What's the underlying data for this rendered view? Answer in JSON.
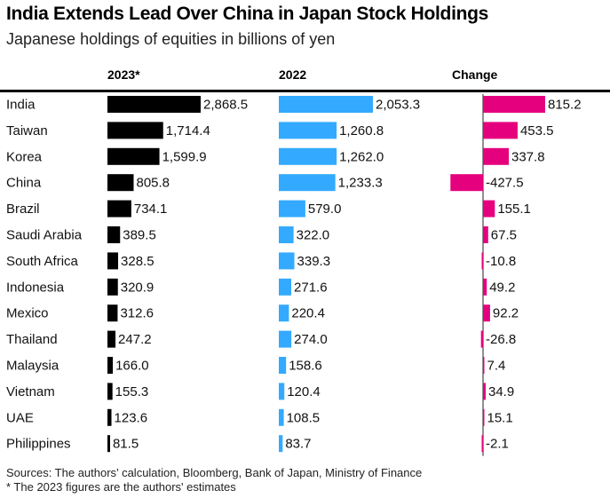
{
  "chart_data": {
    "type": "bar",
    "title": "India Extends Lead Over China in Japan Stock Holdings",
    "subtitle": "Japanese holdings of equities in billions of yen",
    "xlabel": "",
    "ylabel": "",
    "categories": [
      "India",
      "Taiwan",
      "Korea",
      "China",
      "Brazil",
      "Saudi Arabia",
      "South Africa",
      "Indonesia",
      "Mexico",
      "Thailand",
      "Malaysia",
      "Vietnam",
      "UAE",
      "Philippines"
    ],
    "series": [
      {
        "name": "2023*",
        "color": "#000000",
        "values": [
          2868.5,
          1714.4,
          1599.9,
          805.8,
          734.1,
          389.5,
          328.5,
          320.9,
          312.6,
          247.2,
          166.0,
          155.3,
          123.6,
          81.5
        ],
        "labels": [
          "2,868.5",
          "1,714.4",
          "1,599.9",
          "805.8",
          "734.1",
          "389.5",
          "328.5",
          "320.9",
          "312.6",
          "247.2",
          "166.0",
          "155.3",
          "123.6",
          "81.5"
        ]
      },
      {
        "name": "2022",
        "color": "#33aaff",
        "values": [
          2053.3,
          1260.8,
          1262.0,
          1233.3,
          579.0,
          322.0,
          339.3,
          271.6,
          220.4,
          274.0,
          158.6,
          120.4,
          108.5,
          83.7
        ],
        "labels": [
          "2,053.3",
          "1,260.8",
          "1,262.0",
          "1,233.3",
          "579.0",
          "322.0",
          "339.3",
          "271.6",
          "220.4",
          "274.0",
          "158.6",
          "120.4",
          "108.5",
          "83.7"
        ]
      },
      {
        "name": "Change",
        "color": "#e5007e",
        "values": [
          815.2,
          453.5,
          337.8,
          -427.5,
          155.1,
          67.5,
          -10.8,
          49.2,
          92.2,
          -26.8,
          7.4,
          34.9,
          15.1,
          -2.1
        ],
        "labels": [
          "815.2",
          "453.5",
          "337.8",
          "-427.5",
          "155.1",
          "67.5",
          "-10.8",
          "49.2",
          "92.2",
          "-26.8",
          "7.4",
          "34.9",
          "15.1",
          "-2.1"
        ]
      }
    ],
    "grid": false,
    "legend": "column headers top"
  },
  "footer": {
    "source": "Sources: The authors’ calculation, Bloomberg, Bank of Japan, Ministry of Finance",
    "note": "* The 2023 figures are the authors' estimates"
  }
}
